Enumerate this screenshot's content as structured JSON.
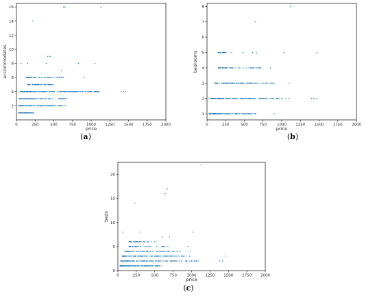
{
  "colors": {
    "point": "#1f77b4",
    "axis": "#000000"
  },
  "chart_data": [
    {
      "type": "scatter",
      "caption_letter": "a",
      "xlabel": "price",
      "ylabel": "accommodates",
      "xlim": [
        0,
        2000
      ],
      "ylim": [
        0,
        16.5
      ],
      "xticks": [
        0,
        250,
        500,
        750,
        1000,
        1250,
        1500,
        1750,
        2000
      ],
      "yticks": [
        2,
        4,
        6,
        8,
        10,
        12,
        14,
        16
      ],
      "bands": [
        {
          "y": 1,
          "x_min": 30,
          "x_max": 230,
          "density": 0.6
        },
        {
          "y": 2,
          "x_min": 30,
          "x_max": 650,
          "density": 0.9
        },
        {
          "y": 3,
          "x_min": 40,
          "x_max": 680,
          "density": 0.8
        },
        {
          "y": 4,
          "x_min": 50,
          "x_max": 1100,
          "density": 1.0
        },
        {
          "y": 5,
          "x_min": 150,
          "x_max": 500,
          "density": 0.45
        },
        {
          "y": 6,
          "x_min": 130,
          "x_max": 700,
          "density": 0.35
        }
      ],
      "points": [
        [
          60,
          8
        ],
        [
          150,
          8
        ],
        [
          400,
          8
        ],
        [
          830,
          8
        ],
        [
          1050,
          8
        ],
        [
          600,
          7
        ],
        [
          900,
          6
        ],
        [
          420,
          9
        ],
        [
          450,
          9
        ],
        [
          220,
          14
        ],
        [
          630,
          16
        ],
        [
          650,
          16
        ],
        [
          1130,
          16
        ],
        [
          1400,
          4
        ],
        [
          1430,
          4
        ],
        [
          1460,
          4
        ],
        [
          1000,
          4
        ],
        [
          1050,
          4
        ],
        [
          800,
          4
        ],
        [
          450,
          6
        ],
        [
          600,
          6
        ]
      ]
    },
    {
      "type": "scatter",
      "caption_letter": "b",
      "xlabel": "price",
      "ylabel": "bedrooms",
      "xlim": [
        0,
        2000
      ],
      "ylim": [
        0.6,
        8.2
      ],
      "xticks": [
        0,
        250,
        500,
        750,
        1000,
        1250,
        1500,
        1750,
        2000
      ],
      "yticks": [
        1,
        2,
        3,
        4,
        5,
        6,
        7,
        8
      ],
      "bands": [
        {
          "y": 1,
          "x_min": 30,
          "x_max": 660,
          "density": 1.0
        },
        {
          "y": 2,
          "x_min": 50,
          "x_max": 1050,
          "density": 0.9
        },
        {
          "y": 3,
          "x_min": 100,
          "x_max": 900,
          "density": 0.75
        },
        {
          "y": 4,
          "x_min": 150,
          "x_max": 780,
          "density": 0.45
        },
        {
          "y": 5,
          "x_min": 150,
          "x_max": 260,
          "density": 0.2
        }
      ],
      "points": [
        [
          330,
          5
        ],
        [
          480,
          5
        ],
        [
          610,
          5
        ],
        [
          660,
          5
        ],
        [
          1030,
          5
        ],
        [
          1470,
          5
        ],
        [
          650,
          7
        ],
        [
          1120,
          8
        ],
        [
          1400,
          2
        ],
        [
          1430,
          2
        ],
        [
          1470,
          2
        ],
        [
          1100,
          3
        ],
        [
          1100,
          2
        ],
        [
          900,
          1
        ],
        [
          850,
          4
        ]
      ]
    },
    {
      "type": "scatter",
      "caption_letter": "c",
      "xlabel": "price",
      "ylabel": "beds",
      "xlim": [
        0,
        2000
      ],
      "ylim": [
        0,
        22.5
      ],
      "xticks": [
        0,
        250,
        500,
        750,
        1000,
        1250,
        1500,
        1750,
        2000
      ],
      "yticks": [
        0,
        5,
        10,
        15,
        20
      ],
      "bands": [
        {
          "y": 1,
          "x_min": 30,
          "x_max": 600,
          "density": 0.9
        },
        {
          "y": 2,
          "x_min": 40,
          "x_max": 1100,
          "density": 1.0
        },
        {
          "y": 3,
          "x_min": 60,
          "x_max": 980,
          "density": 0.8
        },
        {
          "y": 4,
          "x_min": 100,
          "x_max": 850,
          "density": 0.6
        },
        {
          "y": 5,
          "x_min": 150,
          "x_max": 700,
          "density": 0.35
        },
        {
          "y": 6,
          "x_min": 150,
          "x_max": 450,
          "density": 0.25
        }
      ],
      "points": [
        [
          70,
          8
        ],
        [
          300,
          8
        ],
        [
          600,
          7
        ],
        [
          700,
          7
        ],
        [
          950,
          5
        ],
        [
          980,
          4
        ],
        [
          1020,
          8
        ],
        [
          1130,
          22
        ],
        [
          230,
          14
        ],
        [
          640,
          16
        ],
        [
          670,
          17
        ],
        [
          1380,
          2
        ],
        [
          1420,
          2
        ],
        [
          1460,
          3
        ],
        [
          350,
          6
        ],
        [
          500,
          6
        ]
      ]
    }
  ]
}
